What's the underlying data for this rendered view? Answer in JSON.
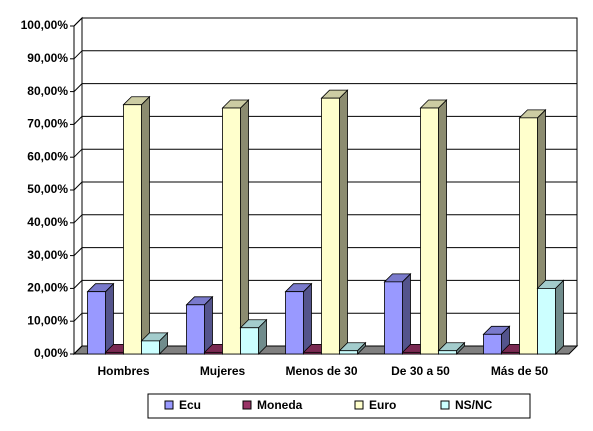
{
  "chart_data": {
    "type": "bar3d",
    "categories": [
      "Hombres",
      "Mujeres",
      "Menos de 30",
      "De 30 a 50",
      "Más de 50"
    ],
    "series": [
      {
        "name": "Ecu",
        "color": "#9999ff",
        "values": [
          19,
          15,
          19,
          22,
          6
        ]
      },
      {
        "name": "Moneda",
        "color": "#993366",
        "values": [
          0.5,
          0.5,
          0.5,
          0.5,
          0.5
        ]
      },
      {
        "name": "Euro",
        "color": "#ffffcc",
        "values": [
          76,
          75,
          78,
          75,
          72
        ]
      },
      {
        "name": "NS/NC",
        "color": "#ccffff",
        "values": [
          4,
          8,
          1,
          1,
          20
        ]
      }
    ],
    "ylim": [
      0,
      100
    ],
    "yticks": [
      {
        "value": 0,
        "label": "0,00%"
      },
      {
        "value": 10,
        "label": "10,00%"
      },
      {
        "value": 20,
        "label": "20,00%"
      },
      {
        "value": 30,
        "label": "30,00%"
      },
      {
        "value": 40,
        "label": "40,00%"
      },
      {
        "value": 50,
        "label": "50,00%"
      },
      {
        "value": 60,
        "label": "60,00%"
      },
      {
        "value": 70,
        "label": "70,00%"
      },
      {
        "value": 80,
        "label": "80,00%"
      },
      {
        "value": 90,
        "label": "90,00%"
      },
      {
        "value": 100,
        "label": "100,00%"
      }
    ],
    "grid": true,
    "legend": "bottom"
  }
}
